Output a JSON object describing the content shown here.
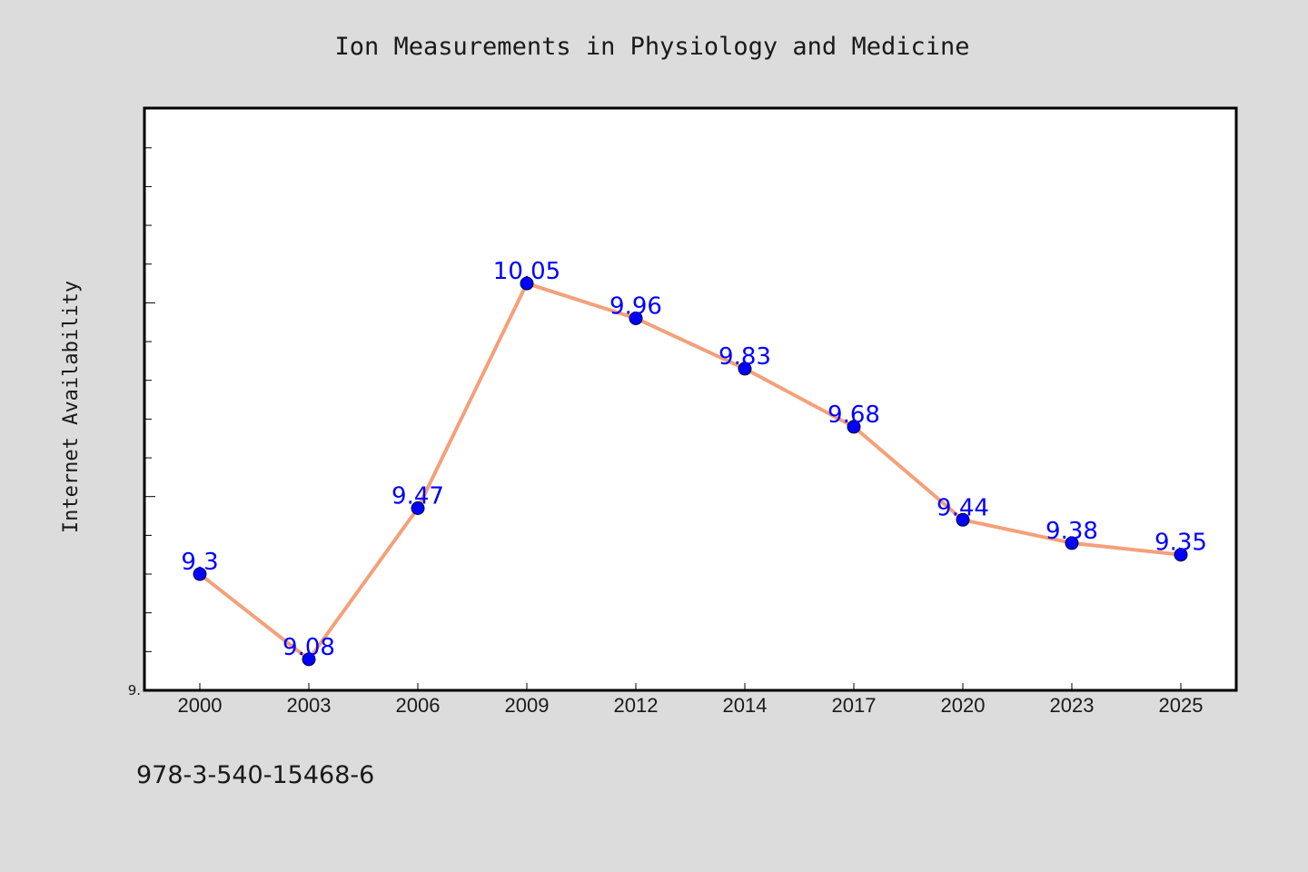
{
  "colors": {
    "background": "#dcdcdc",
    "plot_background": "#ffffff",
    "line": "#f4a07a",
    "marker": "#0000ff",
    "label": "#0000ff",
    "text": "#1a1a1a"
  },
  "footer_code": "978-3-540-15468-6",
  "chart_data": {
    "type": "line",
    "title": "Ion Measurements in Physiology and Medicine",
    "xlabel": "",
    "ylabel": "Internet Availability",
    "categories": [
      "2000",
      "2003",
      "2006",
      "2009",
      "2012",
      "2014",
      "2017",
      "2020",
      "2023",
      "2025"
    ],
    "series": [
      {
        "values": [
          9.3,
          9.08,
          9.47,
          10.05,
          9.96,
          9.83,
          9.68,
          9.44,
          9.38,
          9.35
        ],
        "labels": [
          "9.3",
          "9.08",
          "9.47",
          "10.05",
          "9.96",
          "9.83",
          "9.68",
          "9.44",
          "9.38",
          "9.35"
        ]
      }
    ],
    "ylim": [
      9.0,
      10.5
    ],
    "y_tick_labels": [
      {
        "value": 9.0,
        "label": "9."
      }
    ],
    "grid": false,
    "legend": "none"
  }
}
